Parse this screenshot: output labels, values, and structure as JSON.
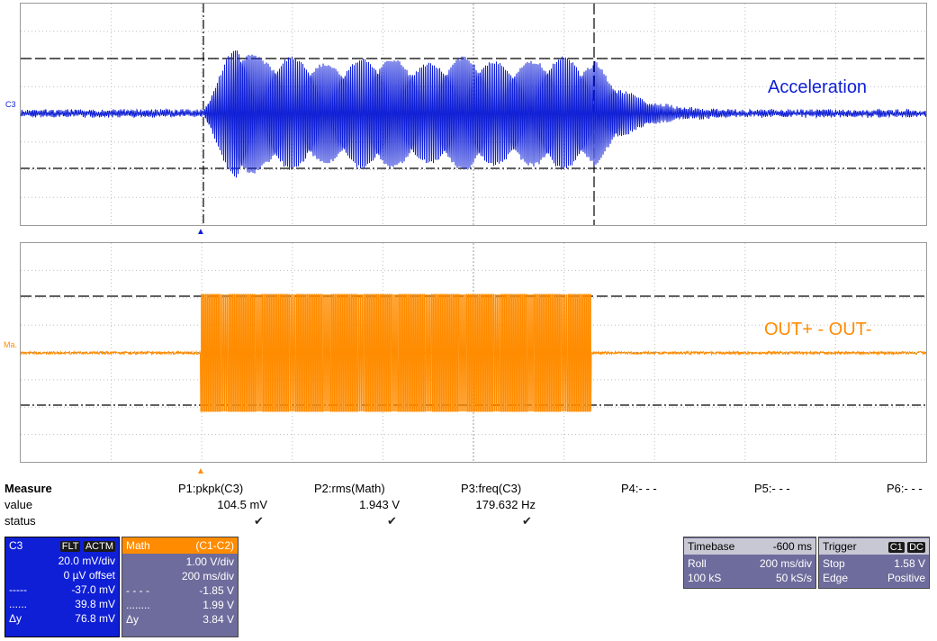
{
  "channels": {
    "c3": {
      "tag": "C3",
      "label": "Acceleration",
      "color": "#0f1fd6"
    },
    "math": {
      "tag": "Ma.",
      "label": "OUT+ - OUT-",
      "color": "#ff8c00"
    }
  },
  "markers": {
    "trigger_up": "▲",
    "trigger_up2": "▲"
  },
  "measure": {
    "title": "Measure",
    "row_value": "value",
    "row_status": "status",
    "params": [
      {
        "name": "P1:pkpk(C3)",
        "value": "104.5 mV",
        "status": "✔"
      },
      {
        "name": "P2:rms(Math)",
        "value": "1.943 V",
        "status": "✔"
      },
      {
        "name": "P3:freq(C3)",
        "value": "179.632 Hz",
        "status": "✔"
      },
      {
        "name": "P4:- - -",
        "value": "",
        "status": ""
      },
      {
        "name": "P5:- - -",
        "value": "",
        "status": ""
      },
      {
        "name": "P6:- - -",
        "value": "",
        "status": ""
      }
    ]
  },
  "c3_panel": {
    "title": "C3",
    "badges": [
      "FLT",
      "ACTM"
    ],
    "vdiv": "20.0 mV/div",
    "offset": "0 µV offset",
    "cursor1_sym": "-----",
    "cursor1": "-37.0 mV",
    "cursor2_sym": "......",
    "cursor2": "39.8 mV",
    "delta_sym": "Δy",
    "delta": "76.8 mV",
    "color": "#0f1fd6"
  },
  "math_panel": {
    "title": "Math",
    "expr": "(C1-C2)",
    "vdiv": "1.00 V/div",
    "tdiv": "200 ms/div",
    "cursor1_sym": "- - - -",
    "cursor1": "-1.85 V",
    "cursor2_sym": "........",
    "cursor2": "1.99 V",
    "delta_sym": "Δy",
    "delta": "3.84 V"
  },
  "timebase_panel": {
    "title": "Timebase",
    "delay": "-600 ms",
    "mode": "Roll",
    "tdiv": "200 ms/div",
    "samples": "100 kS",
    "rate": "50 kS/s"
  },
  "trigger_panel": {
    "title": "Trigger",
    "badges": [
      "C1",
      "DC"
    ],
    "mode": "Stop",
    "level": "1.58 V",
    "type": "Edge",
    "slope": "Positive"
  }
}
